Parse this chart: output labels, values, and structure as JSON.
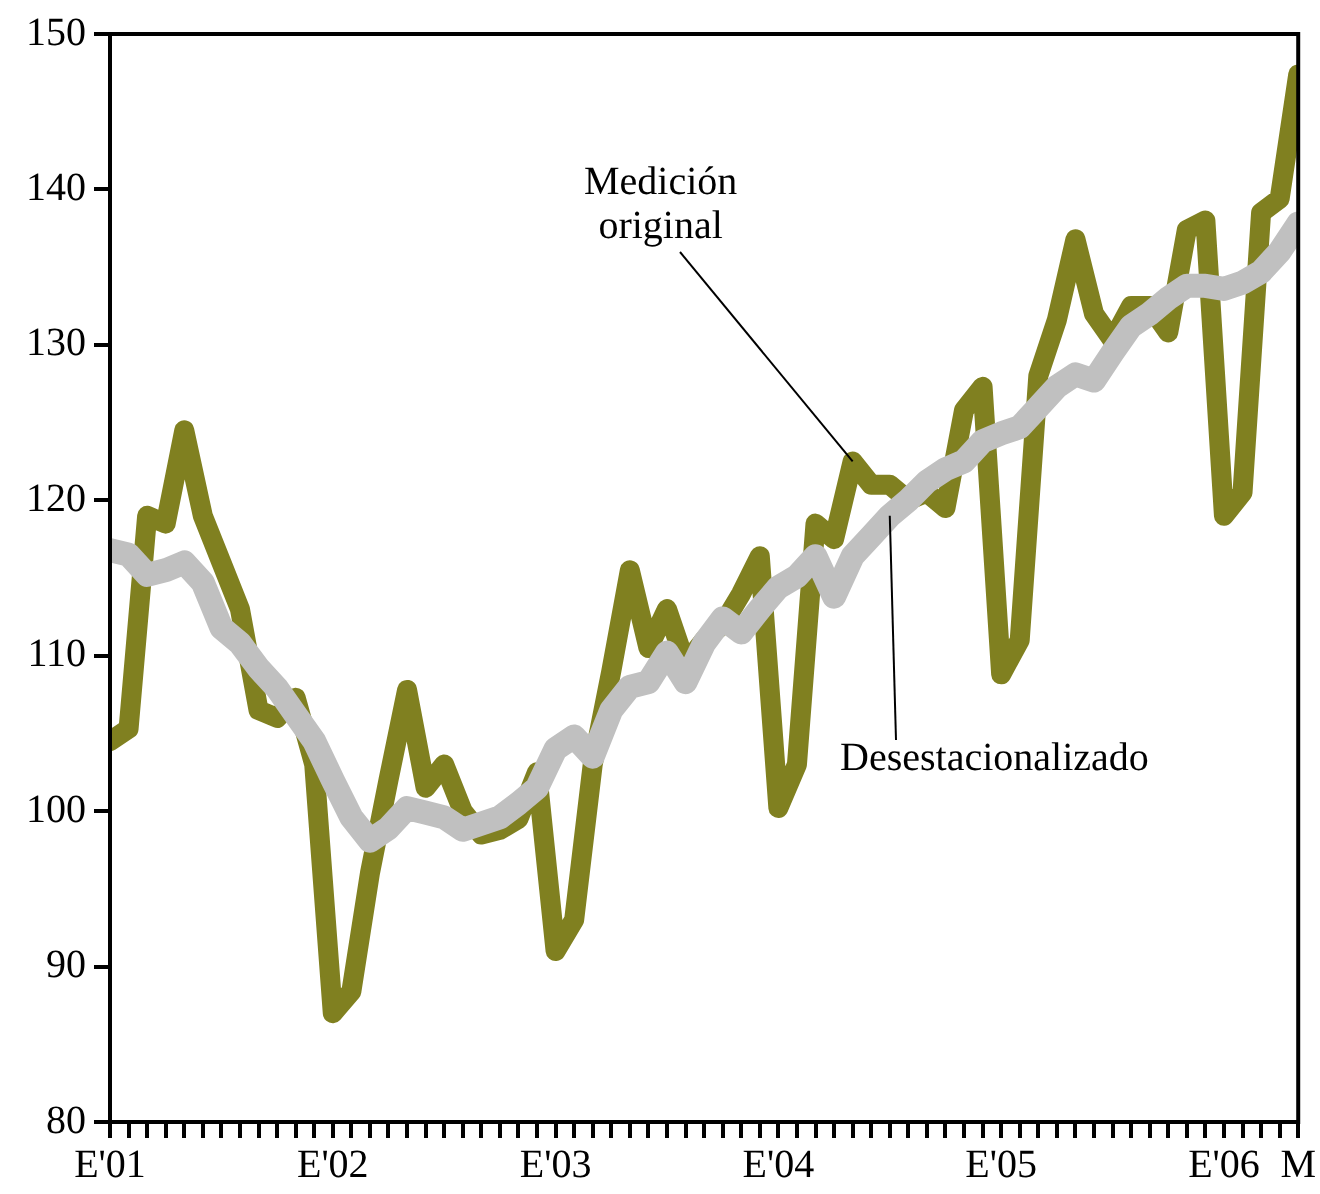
{
  "chart_data": {
    "type": "line",
    "x": [
      "2001-01",
      "2001-02",
      "2001-03",
      "2001-04",
      "2001-05",
      "2001-06",
      "2001-07",
      "2001-08",
      "2001-09",
      "2001-10",
      "2001-11",
      "2001-12",
      "2002-01",
      "2002-02",
      "2002-03",
      "2002-04",
      "2002-05",
      "2002-06",
      "2002-07",
      "2002-08",
      "2002-09",
      "2002-10",
      "2002-11",
      "2002-12",
      "2003-01",
      "2003-02",
      "2003-03",
      "2003-04",
      "2003-05",
      "2003-06",
      "2003-07",
      "2003-08",
      "2003-09",
      "2003-10",
      "2003-11",
      "2003-12",
      "2004-01",
      "2004-02",
      "2004-03",
      "2004-04",
      "2004-05",
      "2004-06",
      "2004-07",
      "2004-08",
      "2004-09",
      "2004-10",
      "2004-11",
      "2004-12",
      "2005-01",
      "2005-02",
      "2005-03",
      "2005-04",
      "2005-05",
      "2005-06",
      "2005-07",
      "2005-08",
      "2005-09",
      "2005-10",
      "2005-11",
      "2005-12",
      "2006-01",
      "2006-02",
      "2006-03",
      "2006-04",
      "2006-05"
    ],
    "series": [
      {
        "color": "#808020",
        "values": [
          104.5,
          105.3,
          119,
          118.5,
          124.5,
          119,
          116,
          113,
          106.5,
          106,
          107.3,
          103,
          87,
          88.4,
          96,
          102,
          107.8,
          101.5,
          103,
          100,
          98.5,
          98.8,
          99.5,
          102.5,
          91,
          93,
          103,
          109,
          115.5,
          110.5,
          113,
          109.5,
          111,
          112,
          114,
          116.4,
          100.2,
          103,
          118.5,
          117.5,
          122.5,
          121,
          121,
          120,
          120.5,
          119.5,
          125.8,
          127.3,
          108.8,
          111,
          128,
          131.6,
          136.8,
          132,
          130.3,
          132.5,
          132.5,
          130.8,
          137.4,
          138,
          119,
          120.5,
          138.5,
          139.4,
          147.4
        ]
      },
      {
        "color": "#c0c0c0",
        "values": [
          116.8,
          116.5,
          115.2,
          115.5,
          116,
          114.7,
          111.8,
          110.8,
          109.2,
          107.9,
          106.2,
          104.5,
          102,
          99.6,
          98.1,
          98.9,
          100.2,
          99.9,
          99.6,
          98.8,
          99.2,
          99.6,
          100.5,
          101.5,
          104,
          104.8,
          103.5,
          106.5,
          108,
          108.3,
          110.2,
          108.3,
          110.8,
          112.4,
          111.5,
          113,
          114.4,
          115.1,
          116.4,
          113.8,
          116.4,
          117.7,
          119,
          120,
          121.2,
          122,
          122.5,
          123.8,
          124.3,
          124.7,
          126,
          127.3,
          128.1,
          127.7,
          129.5,
          131.2,
          132,
          133,
          133.8,
          133.8,
          133.6,
          134,
          134.7,
          136,
          137.8
        ]
      }
    ],
    "xlim": [
      "2001-01",
      "2006-05"
    ],
    "xticks": [
      {
        "value": "2001-01",
        "label": "E'01"
      },
      {
        "value": "2001-02",
        "label": null
      },
      {
        "value": "2001-03",
        "label": null
      },
      {
        "value": "2001-04",
        "label": null
      },
      {
        "value": "2001-05",
        "label": null
      },
      {
        "value": "2001-06",
        "label": null
      },
      {
        "value": "2001-07",
        "label": null
      },
      {
        "value": "2001-08",
        "label": null
      },
      {
        "value": "2001-09",
        "label": null
      },
      {
        "value": "2001-10",
        "label": null
      },
      {
        "value": "2001-11",
        "label": null
      },
      {
        "value": "2001-12",
        "label": null
      },
      {
        "value": "2002-01",
        "label": "E'02"
      },
      {
        "value": "2002-02",
        "label": null
      },
      {
        "value": "2002-03",
        "label": null
      },
      {
        "value": "2002-04",
        "label": null
      },
      {
        "value": "2002-05",
        "label": null
      },
      {
        "value": "2002-06",
        "label": null
      },
      {
        "value": "2002-07",
        "label": null
      },
      {
        "value": "2002-08",
        "label": null
      },
      {
        "value": "2002-09",
        "label": null
      },
      {
        "value": "2002-10",
        "label": null
      },
      {
        "value": "2002-11",
        "label": null
      },
      {
        "value": "2002-12",
        "label": null
      },
      {
        "value": "2003-01",
        "label": "E'03"
      },
      {
        "value": "2003-02",
        "label": null
      },
      {
        "value": "2003-03",
        "label": null
      },
      {
        "value": "2003-04",
        "label": null
      },
      {
        "value": "2003-05",
        "label": null
      },
      {
        "value": "2003-06",
        "label": null
      },
      {
        "value": "2003-07",
        "label": null
      },
      {
        "value": "2003-08",
        "label": null
      },
      {
        "value": "2003-09",
        "label": null
      },
      {
        "value": "2003-10",
        "label": null
      },
      {
        "value": "2003-11",
        "label": null
      },
      {
        "value": "2003-12",
        "label": null
      },
      {
        "value": "2004-01",
        "label": "E'04"
      },
      {
        "value": "2004-02",
        "label": null
      },
      {
        "value": "2004-03",
        "label": null
      },
      {
        "value": "2004-04",
        "label": null
      },
      {
        "value": "2004-05",
        "label": null
      },
      {
        "value": "2004-06",
        "label": null
      },
      {
        "value": "2004-07",
        "label": null
      },
      {
        "value": "2004-08",
        "label": null
      },
      {
        "value": "2004-09",
        "label": null
      },
      {
        "value": "2004-10",
        "label": null
      },
      {
        "value": "2004-11",
        "label": null
      },
      {
        "value": "2004-12",
        "label": null
      },
      {
        "value": "2005-01",
        "label": "E'05"
      },
      {
        "value": "2005-02",
        "label": null
      },
      {
        "value": "2005-03",
        "label": null
      },
      {
        "value": "2005-04",
        "label": null
      },
      {
        "value": "2005-05",
        "label": null
      },
      {
        "value": "2005-06",
        "label": null
      },
      {
        "value": "2005-07",
        "label": null
      },
      {
        "value": "2005-08",
        "label": null
      },
      {
        "value": "2005-09",
        "label": null
      },
      {
        "value": "2005-10",
        "label": null
      },
      {
        "value": "2005-11",
        "label": null
      },
      {
        "value": "2005-12",
        "label": null
      },
      {
        "value": "2006-01",
        "label": "E'06"
      },
      {
        "value": "2006-02",
        "label": null
      },
      {
        "value": "2006-03",
        "label": null
      },
      {
        "value": "2006-04",
        "label": null
      },
      {
        "value": "2006-05",
        "label": "M"
      }
    ],
    "ylim": [
      80,
      150
    ],
    "yticks": [
      80,
      90,
      100,
      110,
      120,
      130,
      140,
      150
    ],
    "annotations": [
      {
        "text": "Medición original",
        "x": "2004-05",
        "y": 122.5
      },
      {
        "text": "Desestacionalizado",
        "x": "2004-07",
        "y": 119
      }
    ],
    "grid": false,
    "legend": false,
    "marker": "none",
    "line_style": "solid"
  }
}
